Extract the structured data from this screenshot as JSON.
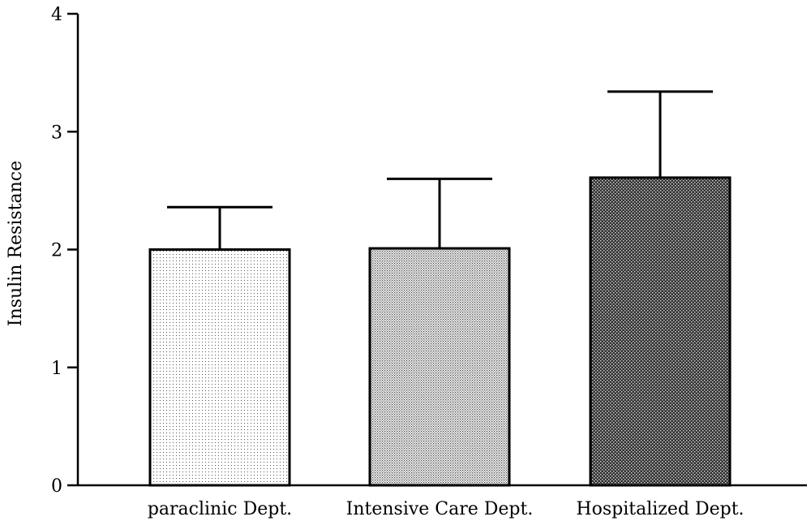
{
  "chart_data": {
    "type": "bar",
    "title": "",
    "xlabel": "",
    "ylabel": "Insulin Resistance",
    "categories": [
      "paraclinic Dept.",
      "Intensive Care Dept.",
      "Hospitalized Dept."
    ],
    "values": [
      2.0,
      2.01,
      2.61
    ],
    "error_upper": [
      2.36,
      2.6,
      3.34
    ],
    "ylim": [
      0,
      4
    ],
    "yticks": [
      "0",
      "1",
      "2",
      "3",
      "4"
    ],
    "grid": false,
    "legend": "none",
    "fill_patterns": [
      "light-dots",
      "medium-dots",
      "dense-dots"
    ]
  }
}
